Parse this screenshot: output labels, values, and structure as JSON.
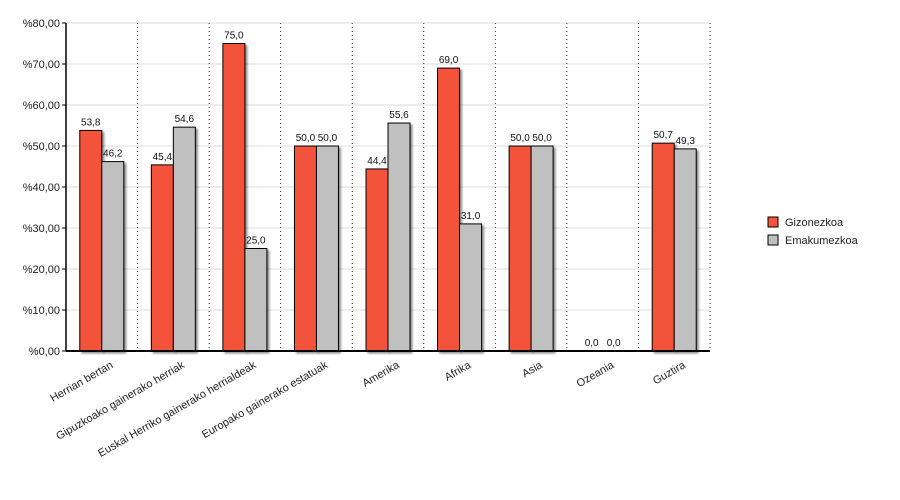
{
  "chart_data": {
    "type": "bar",
    "categories": [
      "Herrian bertan",
      "Gipuzkoako gainerako herriak",
      "Euskal Herriko gainerako herrialdeak",
      "Europako gainerako estatuak",
      "Amerika",
      "Afrika",
      "Asia",
      "Ozeania",
      "Guztira"
    ],
    "series": [
      {
        "name": "Gizonezkoa",
        "color": "#f4533a",
        "values": [
          53.8,
          45.4,
          75.0,
          50.0,
          44.4,
          69.0,
          50.0,
          0.0,
          50.7
        ],
        "labels": [
          "53,8",
          "45,4",
          "75,0",
          "50,0",
          "44,4",
          "69,0",
          "50,0",
          "0,0",
          "50,7"
        ]
      },
      {
        "name": "Emakumezkoa",
        "color": "#c0c0c0",
        "values": [
          46.2,
          54.6,
          25.0,
          50.0,
          55.6,
          31.0,
          50.0,
          0.0,
          49.3
        ],
        "labels": [
          "46,2",
          "54,6",
          "25,0",
          "50,0",
          "55,6",
          "31,0",
          "50,0",
          "0,0",
          "49,3"
        ]
      }
    ],
    "ylim": [
      0,
      80
    ],
    "yticks": [
      0,
      10,
      20,
      30,
      40,
      50,
      60,
      70,
      80
    ],
    "ytick_labels": [
      "%0,00",
      "%10,00",
      "%20,00",
      "%30,00",
      "%40,00",
      "%50,00",
      "%60,00",
      "%70,00",
      "%80,00"
    ],
    "title": "",
    "xlabel": "",
    "ylabel": "",
    "grid": true,
    "legend_position": "right"
  }
}
